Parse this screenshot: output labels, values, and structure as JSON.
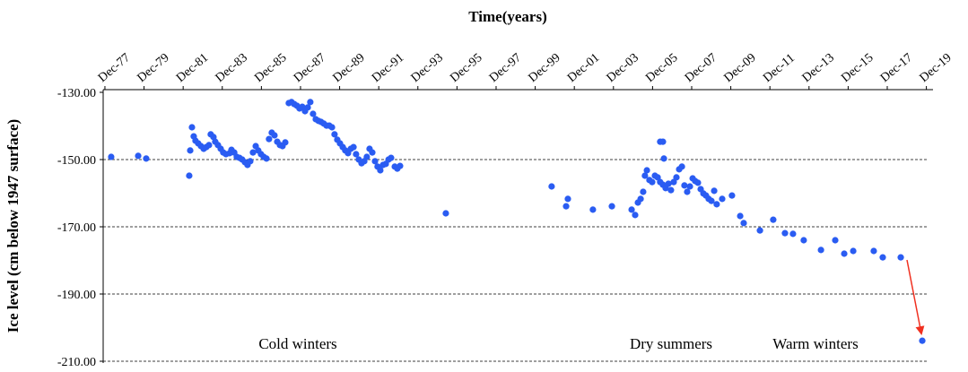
{
  "chart_data": {
    "type": "scatter",
    "title": "Time(years)",
    "y_label": "Ice level (cm below 1947 surface)",
    "color": "#2a5cf2",
    "grid": true,
    "annotations": [
      "Cold winters",
      "Dry summers",
      "Warm winters"
    ],
    "xlim": [
      1977.83,
      2020.03
    ],
    "xticks": [
      {
        "value": 1977.92,
        "label": "Dec-77"
      },
      {
        "value": 1979.92,
        "label": "Dec-79"
      },
      {
        "value": 1981.92,
        "label": "Dec-81"
      },
      {
        "value": 1983.92,
        "label": "Dec-83"
      },
      {
        "value": 1985.92,
        "label": "Dec-85"
      },
      {
        "value": 1987.92,
        "label": "Dec-87"
      },
      {
        "value": 1989.92,
        "label": "Dec-89"
      },
      {
        "value": 1991.92,
        "label": "Dec-91"
      },
      {
        "value": 1993.92,
        "label": "Dec-93"
      },
      {
        "value": 1995.92,
        "label": "Dec-95"
      },
      {
        "value": 1997.92,
        "label": "Dec-97"
      },
      {
        "value": 1999.92,
        "label": "Dec-99"
      },
      {
        "value": 2001.92,
        "label": "Dec-01"
      },
      {
        "value": 2003.92,
        "label": "Dec-03"
      },
      {
        "value": 2005.92,
        "label": "Dec-05"
      },
      {
        "value": 2007.92,
        "label": "Dec-07"
      },
      {
        "value": 2009.92,
        "label": "Dec-09"
      },
      {
        "value": 2011.92,
        "label": "Dec-11"
      },
      {
        "value": 2013.92,
        "label": "Dec-13"
      },
      {
        "value": 2015.92,
        "label": "Dec-15"
      },
      {
        "value": 2017.92,
        "label": "Dec-17"
      },
      {
        "value": 2019.92,
        "label": "Dec-19"
      }
    ],
    "ylim": [
      -130,
      -210
    ],
    "yticks": [
      {
        "value": -130,
        "label": "-130.00"
      },
      {
        "value": -150,
        "label": "-150.00"
      },
      {
        "value": -170,
        "label": "-170.00"
      },
      {
        "value": -190,
        "label": "-190.00"
      },
      {
        "value": -210,
        "label": "-210.00"
      }
    ],
    "x": [
      1978.24,
      1979.62,
      1980.03,
      1982.23,
      1982.28,
      1982.37,
      1982.46,
      1982.55,
      1982.69,
      1982.83,
      1982.97,
      1983.1,
      1983.24,
      1983.33,
      1983.47,
      1983.56,
      1983.7,
      1983.84,
      1983.97,
      1984.11,
      1984.3,
      1984.39,
      1984.53,
      1984.66,
      1984.8,
      1984.94,
      1985.08,
      1985.21,
      1985.35,
      1985.49,
      1985.63,
      1985.76,
      1985.9,
      1986.04,
      1986.18,
      1986.31,
      1986.45,
      1986.59,
      1986.73,
      1986.87,
      1987.0,
      1987.14,
      1987.32,
      1987.46,
      1987.6,
      1987.74,
      1987.87,
      1988.01,
      1988.15,
      1988.29,
      1988.42,
      1988.56,
      1988.7,
      1988.84,
      1988.97,
      1989.11,
      1989.25,
      1989.39,
      1989.53,
      1989.66,
      1989.8,
      1989.94,
      1990.08,
      1990.21,
      1990.35,
      1990.49,
      1990.63,
      1990.76,
      1990.9,
      1991.04,
      1991.18,
      1991.31,
      1991.45,
      1991.59,
      1991.73,
      1991.86,
      1992.0,
      1992.14,
      1992.28,
      1992.42,
      1992.55,
      1992.74,
      1992.87,
      1993.01,
      1995.35,
      2000.76,
      2001.5,
      2001.59,
      2002.87,
      2003.84,
      2004.85,
      2005.03,
      2005.17,
      2005.31,
      2005.44,
      2005.53,
      2005.63,
      2005.76,
      2005.9,
      2006.04,
      2006.18,
      2006.31,
      2006.31,
      2006.45,
      2006.5,
      2006.45,
      2006.59,
      2006.73,
      2006.86,
      2007.0,
      2007.14,
      2007.28,
      2007.42,
      2007.55,
      2007.69,
      2007.83,
      2007.97,
      2008.1,
      2008.24,
      2008.38,
      2008.52,
      2008.65,
      2008.79,
      2008.93,
      2009.07,
      2009.2,
      2009.48,
      2009.98,
      2010.4,
      2010.58,
      2011.41,
      2012.09,
      2012.69,
      2013.1,
      2013.65,
      2014.53,
      2015.26,
      2015.72,
      2016.18,
      2017.23,
      2017.69,
      2018.61,
      2019.71
    ],
    "values": [
      -149.2,
      -148.9,
      -149.7,
      -154.8,
      -147.3,
      -140.4,
      -143.1,
      -144.4,
      -145.2,
      -146.0,
      -146.8,
      -146.3,
      -145.7,
      -142.5,
      -143.3,
      -144.7,
      -145.7,
      -146.8,
      -147.9,
      -148.4,
      -148.1,
      -147.1,
      -147.9,
      -149.2,
      -149.5,
      -150.0,
      -150.8,
      -151.6,
      -150.5,
      -147.9,
      -146.0,
      -147.3,
      -148.4,
      -149.2,
      -149.7,
      -143.9,
      -142.0,
      -142.8,
      -144.7,
      -145.7,
      -146.0,
      -144.9,
      -133.2,
      -132.9,
      -133.5,
      -134.0,
      -134.8,
      -134.3,
      -135.6,
      -134.5,
      -132.9,
      -136.4,
      -138.0,
      -138.5,
      -138.8,
      -139.3,
      -139.9,
      -139.9,
      -140.4,
      -142.5,
      -144.1,
      -145.2,
      -146.3,
      -147.3,
      -148.1,
      -146.8,
      -146.3,
      -148.4,
      -150.0,
      -151.1,
      -150.5,
      -149.2,
      -146.8,
      -147.9,
      -150.5,
      -152.1,
      -153.2,
      -151.6,
      -151.3,
      -150.0,
      -149.5,
      -152.1,
      -152.7,
      -151.9,
      -166.0,
      -158.0,
      -163.9,
      -161.7,
      -164.9,
      -163.9,
      -164.9,
      -166.5,
      -162.8,
      -161.7,
      -159.6,
      -154.8,
      -153.2,
      -156.1,
      -156.7,
      -154.8,
      -155.3,
      -156.7,
      -144.7,
      -144.7,
      -149.7,
      -157.5,
      -158.5,
      -157.2,
      -159.1,
      -156.7,
      -155.3,
      -152.9,
      -152.1,
      -157.7,
      -159.6,
      -158.0,
      -155.6,
      -156.4,
      -156.9,
      -158.8,
      -160.1,
      -160.7,
      -161.7,
      -162.3,
      -159.3,
      -163.3,
      -161.7,
      -160.7,
      -166.8,
      -168.9,
      -171.1,
      -167.9,
      -171.9,
      -172.1,
      -174.0,
      -176.9,
      -174.0,
      -178.0,
      -177.2,
      -177.2,
      -179.1,
      -179.1,
      -203.9
    ]
  }
}
